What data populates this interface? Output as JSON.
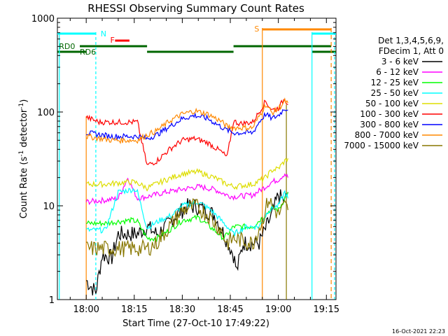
{
  "chart_data": {
    "type": "line",
    "title": "RHESSI Observing Summary Count Rates",
    "xlabel": "Start Time (27-Oct-10 17:49:22)",
    "ylabel_main": "Count Rate (s",
    "ylabel_sup": "-1",
    "ylabel_tail": " detector",
    "ylabel_close": ")",
    "yscale": "log",
    "ylim": [
      1,
      1000
    ],
    "xlim": [
      -9,
      78
    ],
    "x_units": "minutes after 18:00",
    "xticks": [
      {
        "v": 0,
        "label": "18:00"
      },
      {
        "v": 15,
        "label": "18:15"
      },
      {
        "v": 30,
        "label": "18:30"
      },
      {
        "v": 45,
        "label": "18:45"
      },
      {
        "v": 60,
        "label": "19:00"
      },
      {
        "v": 75,
        "label": "19:15"
      }
    ],
    "yticks": [
      {
        "v": 1,
        "label": "1"
      },
      {
        "v": 10,
        "label": "10"
      },
      {
        "v": 100,
        "label": "100"
      },
      {
        "v": 1000,
        "label": "1000"
      }
    ],
    "legend": {
      "placement": "right",
      "header": [
        "Det 1,3,4,5,6,9,",
        "FDecim 1, Att 0"
      ]
    },
    "series": [
      {
        "name": "3 - 6 keV",
        "color": "#000000",
        "points": [
          [
            0,
            1.6
          ],
          [
            3,
            1.2
          ],
          [
            5,
            3
          ],
          [
            8,
            2.8
          ],
          [
            10,
            5
          ],
          [
            14,
            5
          ],
          [
            16,
            5
          ],
          [
            19,
            6
          ],
          [
            22,
            5
          ],
          [
            25,
            6
          ],
          [
            28,
            8
          ],
          [
            32,
            10
          ],
          [
            36,
            9.5
          ],
          [
            40,
            8
          ],
          [
            43,
            5
          ],
          [
            46,
            3
          ],
          [
            47,
            2
          ],
          [
            49,
            4
          ],
          [
            54,
            4
          ],
          [
            58,
            8
          ],
          [
            60,
            13
          ],
          [
            62,
            11
          ],
          [
            63,
            14
          ]
        ]
      },
      {
        "name": "6 - 12 keV",
        "color": "#ff00ff",
        "points": [
          [
            0,
            11
          ],
          [
            6,
            11.5
          ],
          [
            10,
            12
          ],
          [
            13,
            20
          ],
          [
            15,
            14
          ],
          [
            16,
            12
          ],
          [
            19,
            12.5
          ],
          [
            25,
            14
          ],
          [
            30,
            15
          ],
          [
            35,
            16
          ],
          [
            40,
            15
          ],
          [
            44,
            13
          ],
          [
            46,
            12.5
          ],
          [
            52,
            13
          ],
          [
            56,
            16
          ],
          [
            58,
            18
          ],
          [
            60,
            19
          ],
          [
            62,
            22
          ],
          [
            63,
            20
          ]
        ]
      },
      {
        "name": "12 - 25 keV",
        "color": "#00ff00",
        "points": [
          [
            0,
            6.5
          ],
          [
            6,
            6.5
          ],
          [
            10,
            6.8
          ],
          [
            14,
            7
          ],
          [
            16,
            6.8
          ],
          [
            19,
            4.5
          ],
          [
            22,
            4.5
          ],
          [
            26,
            5.5
          ],
          [
            30,
            7
          ],
          [
            35,
            7.5
          ],
          [
            40,
            5.5
          ],
          [
            43,
            4.5
          ],
          [
            46,
            6
          ],
          [
            52,
            6
          ],
          [
            56,
            8
          ],
          [
            58,
            9.5
          ],
          [
            60,
            9
          ],
          [
            62,
            12
          ],
          [
            63,
            14
          ]
        ]
      },
      {
        "name": "25 - 50 keV",
        "color": "#00ffff",
        "points": [
          [
            0,
            5.5
          ],
          [
            6,
            5.5
          ],
          [
            10,
            14
          ],
          [
            15,
            15
          ],
          [
            16,
            14
          ],
          [
            19,
            5.8
          ],
          [
            23,
            7
          ],
          [
            27,
            8
          ],
          [
            30,
            10
          ],
          [
            35,
            11
          ],
          [
            39,
            9
          ],
          [
            44,
            6
          ],
          [
            46,
            5
          ],
          [
            50,
            6
          ],
          [
            54,
            6
          ],
          [
            57,
            9
          ],
          [
            60,
            10
          ],
          [
            62,
            14
          ],
          [
            63,
            12
          ]
        ]
      },
      {
        "name": "50 - 100 keV",
        "color": "#dddd00",
        "points": [
          [
            0,
            17
          ],
          [
            6,
            17
          ],
          [
            10,
            17.5
          ],
          [
            14,
            18
          ],
          [
            16,
            17.5
          ],
          [
            19,
            15.5
          ],
          [
            25,
            19
          ],
          [
            30,
            22
          ],
          [
            35,
            23
          ],
          [
            40,
            20
          ],
          [
            44,
            17
          ],
          [
            46,
            16
          ],
          [
            52,
            17
          ],
          [
            56,
            20
          ],
          [
            58,
            24
          ],
          [
            60,
            25
          ],
          [
            62,
            30
          ],
          [
            63,
            32
          ]
        ]
      },
      {
        "name": "100 - 300 keV",
        "color": "#ff0000",
        "points": [
          [
            0,
            88
          ],
          [
            4,
            78
          ],
          [
            8,
            78
          ],
          [
            14,
            78
          ],
          [
            16,
            78
          ],
          [
            19,
            27
          ],
          [
            22,
            30
          ],
          [
            26,
            40
          ],
          [
            30,
            50
          ],
          [
            34,
            52
          ],
          [
            38,
            47
          ],
          [
            42,
            38
          ],
          [
            44,
            33
          ],
          [
            46,
            80
          ],
          [
            48,
            75
          ],
          [
            52,
            78
          ],
          [
            54,
            100
          ],
          [
            56,
            130
          ],
          [
            58,
            105
          ],
          [
            60,
            110
          ],
          [
            62,
            140
          ],
          [
            63,
            120
          ]
        ]
      },
      {
        "name": "300 - 800 keV",
        "color": "#0000ff",
        "points": [
          [
            0,
            60
          ],
          [
            8,
            55
          ],
          [
            14,
            55
          ],
          [
            16,
            55
          ],
          [
            19,
            52
          ],
          [
            22,
            57
          ],
          [
            26,
            70
          ],
          [
            30,
            85
          ],
          [
            34,
            92
          ],
          [
            38,
            85
          ],
          [
            42,
            70
          ],
          [
            44,
            64
          ],
          [
            46,
            60
          ],
          [
            52,
            60
          ],
          [
            54,
            78
          ],
          [
            56,
            95
          ],
          [
            58,
            85
          ],
          [
            60,
            92
          ],
          [
            62,
            110
          ],
          [
            63,
            105
          ]
        ]
      },
      {
        "name": "800 - 7000 keV",
        "color": "#ff8800",
        "points": [
          [
            0,
            55
          ],
          [
            8,
            50
          ],
          [
            14,
            50
          ],
          [
            16,
            50
          ],
          [
            19,
            57
          ],
          [
            22,
            63
          ],
          [
            26,
            80
          ],
          [
            30,
            95
          ],
          [
            34,
            103
          ],
          [
            38,
            95
          ],
          [
            42,
            80
          ],
          [
            44,
            70
          ],
          [
            46,
            68
          ],
          [
            52,
            68
          ],
          [
            54,
            90
          ],
          [
            56,
            120
          ],
          [
            58,
            98
          ],
          [
            60,
            108
          ],
          [
            62,
            130
          ],
          [
            63,
            125
          ]
        ]
      },
      {
        "name": "7000 - 15000 keV",
        "color": "#887700",
        "points": [
          [
            0,
            3.5
          ],
          [
            6,
            3.5
          ],
          [
            10,
            3.5
          ],
          [
            14,
            3.5
          ],
          [
            16,
            3.5
          ],
          [
            19,
            3.5
          ],
          [
            22,
            4
          ],
          [
            26,
            6
          ],
          [
            30,
            9
          ],
          [
            34,
            10
          ],
          [
            38,
            8
          ],
          [
            42,
            5.5
          ],
          [
            44,
            4
          ],
          [
            46,
            4.5
          ],
          [
            52,
            4
          ],
          [
            55,
            7
          ],
          [
            57,
            12
          ],
          [
            58,
            10
          ],
          [
            60,
            8
          ],
          [
            62,
            10
          ],
          [
            63,
            9
          ]
        ]
      }
    ],
    "flag_labels": {
      "N": "N",
      "F": "F",
      "S": "S",
      "RD0": "RD0",
      "RD6": "RD6"
    },
    "timestamp": "16-Oct-2021 22:23"
  }
}
